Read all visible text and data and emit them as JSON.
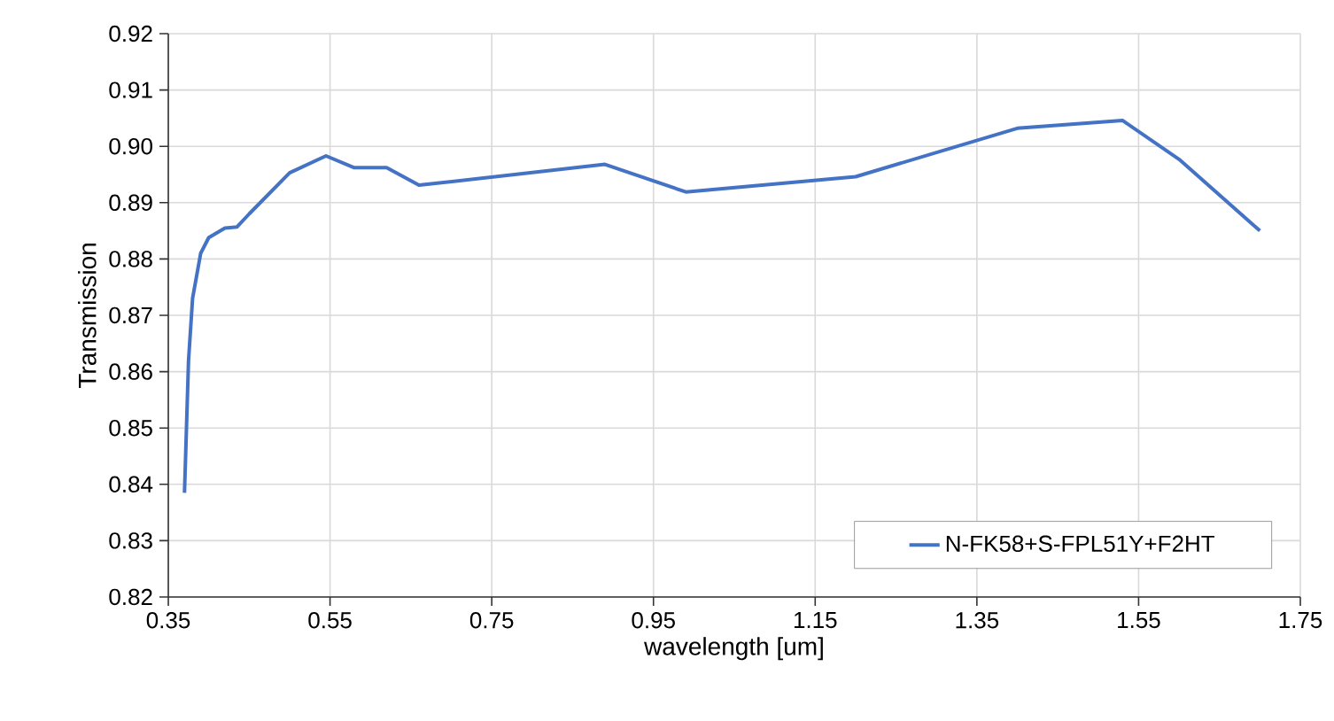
{
  "chart_data": {
    "type": "line",
    "xlabel": "wavelength [um]",
    "ylabel": "Transmission",
    "x": [
      0.37,
      0.375,
      0.38,
      0.39,
      0.4,
      0.42,
      0.435,
      0.45,
      0.5,
      0.545,
      0.58,
      0.62,
      0.66,
      0.89,
      0.99,
      1.2,
      1.4,
      1.53,
      1.6,
      1.7
    ],
    "series": [
      {
        "name": "N-FK58+S-FPL51Y+F2HT",
        "color": "#4472c4",
        "values": [
          0.8385,
          0.862,
          0.873,
          0.881,
          0.8838,
          0.8855,
          0.8857,
          0.888,
          0.8953,
          0.8983,
          0.8962,
          0.8962,
          0.8931,
          0.8968,
          0.8919,
          0.8946,
          0.9032,
          0.9046,
          0.8977,
          0.885
        ]
      }
    ],
    "xlim": [
      0.35,
      1.75
    ],
    "xticks": [
      0.35,
      0.55,
      0.75,
      0.95,
      1.15,
      1.35,
      1.55,
      1.75
    ],
    "ylim": [
      0.82,
      0.92
    ],
    "yticks": [
      0.82,
      0.83,
      0.84,
      0.85,
      0.86,
      0.87,
      0.88,
      0.89,
      {
        "value": 0.9,
        "label": "0.90"
      },
      0.91,
      0.92
    ],
    "grid": true,
    "legend": "bottom right",
    "marker": "none",
    "line_style": "solid"
  }
}
